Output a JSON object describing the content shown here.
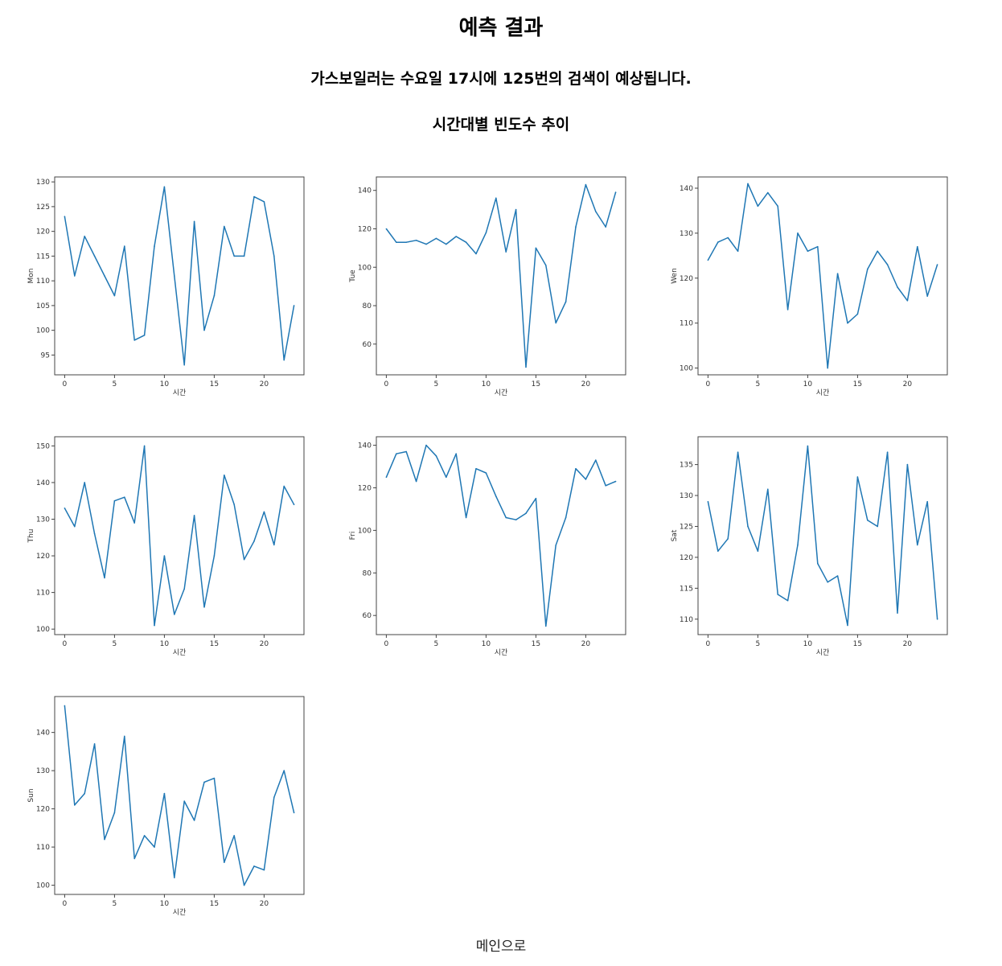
{
  "page": {
    "title": "예측 결과",
    "prediction_text": "가스보일러는 수요일 17시에 125번의 검색이 예상됩니다.",
    "section_title": "시간대별 빈도수 추이",
    "back_link": "메인으로"
  },
  "colors": {
    "line": "#1f77b4",
    "axis": "#444444",
    "text": "#333333"
  },
  "chart_data": [
    {
      "type": "line",
      "ylabel": "Mon",
      "xlabel": "시간",
      "x": [
        0,
        1,
        2,
        3,
        4,
        5,
        6,
        7,
        8,
        9,
        10,
        11,
        12,
        13,
        14,
        15,
        16,
        17,
        18,
        19,
        20,
        21,
        22,
        23
      ],
      "values": [
        123,
        111,
        119,
        115,
        111,
        107,
        117,
        98,
        99,
        117,
        129,
        111,
        93,
        122,
        100,
        107,
        121,
        115,
        115,
        127,
        126,
        115,
        94,
        105
      ],
      "xlim": [
        -1,
        24
      ],
      "ylim": [
        91,
        131
      ],
      "xticks": [
        0,
        5,
        10,
        15,
        20
      ],
      "yticks": [
        95,
        100,
        105,
        110,
        115,
        120,
        125,
        130
      ]
    },
    {
      "type": "line",
      "ylabel": "Tue",
      "xlabel": "시간",
      "x": [
        0,
        1,
        2,
        3,
        4,
        5,
        6,
        7,
        8,
        9,
        10,
        11,
        12,
        13,
        14,
        15,
        16,
        17,
        18,
        19,
        20,
        21,
        22,
        23
      ],
      "values": [
        120,
        113,
        113,
        114,
        112,
        115,
        112,
        116,
        113,
        107,
        118,
        136,
        108,
        130,
        48,
        110,
        101,
        71,
        82,
        121,
        143,
        129,
        121,
        139
      ],
      "xlim": [
        -1,
        24
      ],
      "ylim": [
        44,
        147
      ],
      "xticks": [
        0,
        5,
        10,
        15,
        20
      ],
      "yticks": [
        60,
        80,
        100,
        120,
        140
      ]
    },
    {
      "type": "line",
      "ylabel": "Wen",
      "xlabel": "시간",
      "x": [
        0,
        1,
        2,
        3,
        4,
        5,
        6,
        7,
        8,
        9,
        10,
        11,
        12,
        13,
        14,
        15,
        16,
        17,
        18,
        19,
        20,
        21,
        22,
        23
      ],
      "values": [
        124,
        128,
        129,
        126,
        141,
        136,
        139,
        136,
        113,
        130,
        126,
        127,
        100,
        121,
        110,
        112,
        122,
        126,
        123,
        118,
        115,
        127,
        116,
        123
      ],
      "xlim": [
        -1,
        24
      ],
      "ylim": [
        98.5,
        142.5
      ],
      "xticks": [
        0,
        5,
        10,
        15,
        20
      ],
      "yticks": [
        100,
        110,
        120,
        130,
        140
      ]
    },
    {
      "type": "line",
      "ylabel": "Thu",
      "xlabel": "시간",
      "x": [
        0,
        1,
        2,
        3,
        4,
        5,
        6,
        7,
        8,
        9,
        10,
        11,
        12,
        13,
        14,
        15,
        16,
        17,
        18,
        19,
        20,
        21,
        22,
        23
      ],
      "values": [
        133,
        128,
        140,
        126,
        114,
        135,
        136,
        129,
        150,
        101,
        120,
        104,
        111,
        131,
        106,
        120,
        142,
        134,
        119,
        124,
        132,
        123,
        139,
        134
      ],
      "xlim": [
        -1,
        24
      ],
      "ylim": [
        98.5,
        152.5
      ],
      "xticks": [
        0,
        5,
        10,
        15,
        20
      ],
      "yticks": [
        100,
        110,
        120,
        130,
        140,
        150
      ]
    },
    {
      "type": "line",
      "ylabel": "Fri",
      "xlabel": "시간",
      "x": [
        0,
        1,
        2,
        3,
        4,
        5,
        6,
        7,
        8,
        9,
        10,
        11,
        12,
        13,
        14,
        15,
        16,
        17,
        18,
        19,
        20,
        21,
        22,
        23
      ],
      "values": [
        125,
        136,
        137,
        123,
        140,
        135,
        125,
        136,
        106,
        129,
        127,
        116,
        106,
        105,
        108,
        115,
        55,
        93,
        106,
        129,
        124,
        133,
        121,
        123
      ],
      "xlim": [
        -1,
        24
      ],
      "ylim": [
        51,
        144
      ],
      "xticks": [
        0,
        5,
        10,
        15,
        20
      ],
      "yticks": [
        60,
        80,
        100,
        120,
        140
      ]
    },
    {
      "type": "line",
      "ylabel": "Sat",
      "xlabel": "시간",
      "x": [
        0,
        1,
        2,
        3,
        4,
        5,
        6,
        7,
        8,
        9,
        10,
        11,
        12,
        13,
        14,
        15,
        16,
        17,
        18,
        19,
        20,
        21,
        22,
        23
      ],
      "values": [
        129,
        121,
        123,
        137,
        125,
        121,
        131,
        114,
        113,
        122,
        138,
        119,
        116,
        117,
        109,
        133,
        126,
        125,
        137,
        111,
        135,
        122,
        129,
        110
      ],
      "xlim": [
        -1,
        24
      ],
      "ylim": [
        107.5,
        139.5
      ],
      "xticks": [
        0,
        5,
        10,
        15,
        20
      ],
      "yticks": [
        110,
        115,
        120,
        125,
        130,
        135
      ]
    },
    {
      "type": "line",
      "ylabel": "Sun",
      "xlabel": "시간",
      "x": [
        0,
        1,
        2,
        3,
        4,
        5,
        6,
        7,
        8,
        9,
        10,
        11,
        12,
        13,
        14,
        15,
        16,
        17,
        18,
        19,
        20,
        21,
        22,
        23
      ],
      "values": [
        147,
        121,
        124,
        137,
        112,
        119,
        139,
        107,
        113,
        110,
        124,
        102,
        122,
        117,
        127,
        128,
        106,
        113,
        100,
        105,
        104,
        123,
        130,
        119
      ],
      "xlim": [
        -1,
        24
      ],
      "ylim": [
        97.6,
        149.4
      ],
      "xticks": [
        0,
        5,
        10,
        15,
        20
      ],
      "yticks": [
        100,
        110,
        120,
        130,
        140
      ]
    }
  ]
}
